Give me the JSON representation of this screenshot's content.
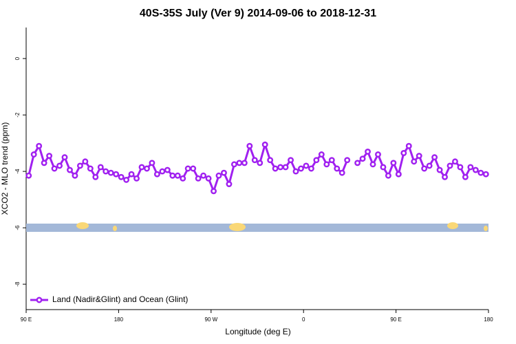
{
  "chart_data": {
    "type": "line",
    "title": "40S-35S July (Ver 9)   2014-09-06 to 2018-12-31",
    "x_label": "Longitude (deg E)",
    "y_label": "XCO2 - MLO trend (ppm)",
    "xlim": [
      90,
      540
    ],
    "xticks": [
      {
        "value": 90,
        "label": "90 E"
      },
      180,
      {
        "value": 270,
        "label": "90 W"
      },
      {
        "value": 360,
        "label": "0"
      },
      {
        "value": 450,
        "label": "90 E"
      },
      {
        "value": 540,
        "label": "180"
      }
    ],
    "ylim": [
      -8.9,
      1.1
    ],
    "yticks": [
      0,
      -2,
      -4,
      -6,
      -8
    ],
    "legend": "bottom-left",
    "x": [
      92.5,
      97.5,
      102.5,
      107.5,
      112.5,
      117.5,
      122.5,
      127.5,
      132.5,
      137.5,
      142.5,
      147.5,
      152.5,
      157.5,
      162.5,
      167.5,
      172.5,
      177.5,
      182.5,
      187.5,
      192.5,
      197.5,
      202.5,
      207.5,
      212.5,
      217.5,
      222.5,
      227.5,
      232.5,
      237.5,
      242.5,
      247.5,
      252.5,
      257.5,
      262.5,
      267.5,
      272.5,
      277.5,
      282.5,
      287.5,
      292.5,
      297.5,
      302.5,
      307.5,
      312.5,
      317.5,
      322.5,
      327.5,
      332.5,
      337.5,
      342.5,
      347.5,
      352.5,
      357.5,
      362.5,
      367.5,
      372.5,
      377.5,
      382.5,
      387.5,
      392.5,
      397.5,
      402.5,
      407.5,
      412.5,
      417.5,
      422.5,
      427.5,
      432.5,
      437.5,
      442.5,
      447.5,
      452.5,
      457.5,
      462.5,
      467.5,
      472.5,
      477.5,
      482.5,
      487.5,
      492.5,
      497.5,
      502.5,
      507.5,
      512.5,
      517.5,
      522.5,
      527.5,
      532.5,
      537.5
    ],
    "series": [
      {
        "name": "Land (Nadir&Glint) and Ocean (Glint)",
        "color": "#a020f0",
        "values": [
          -4.15,
          -3.4,
          -3.1,
          -3.7,
          -3.45,
          -3.9,
          -3.8,
          -3.5,
          -3.95,
          -4.15,
          -3.8,
          -3.65,
          -3.9,
          -4.2,
          -3.85,
          -4.0,
          -4.05,
          -4.1,
          -4.2,
          -4.3,
          -4.1,
          -4.25,
          -3.85,
          -3.9,
          -3.7,
          -4.1,
          -4.0,
          -3.95,
          -4.15,
          -4.15,
          -4.25,
          -3.9,
          -3.9,
          -4.25,
          -4.15,
          -4.25,
          -4.7,
          -4.15,
          -4.05,
          -4.45,
          -3.75,
          -3.7,
          -3.7,
          -3.1,
          -3.6,
          -3.7,
          -3.05,
          -3.6,
          -3.9,
          -3.85,
          -3.85,
          -3.6,
          -4.0,
          -3.9,
          -3.8,
          -3.9,
          -3.6,
          -3.4,
          -3.75,
          -3.6,
          -3.9,
          -4.05,
          -3.6,
          null,
          -3.7,
          -3.55,
          -3.3,
          -3.75,
          -3.4,
          -3.85,
          -4.15,
          -3.7,
          -4.1,
          -3.35,
          -3.1,
          -3.65,
          -3.45,
          -3.9,
          -3.8,
          -3.5,
          -3.95,
          -4.2,
          -3.8,
          -3.65,
          -3.85,
          -4.2,
          -3.85,
          -3.95,
          -4.05,
          -4.1
        ]
      }
    ]
  }
}
